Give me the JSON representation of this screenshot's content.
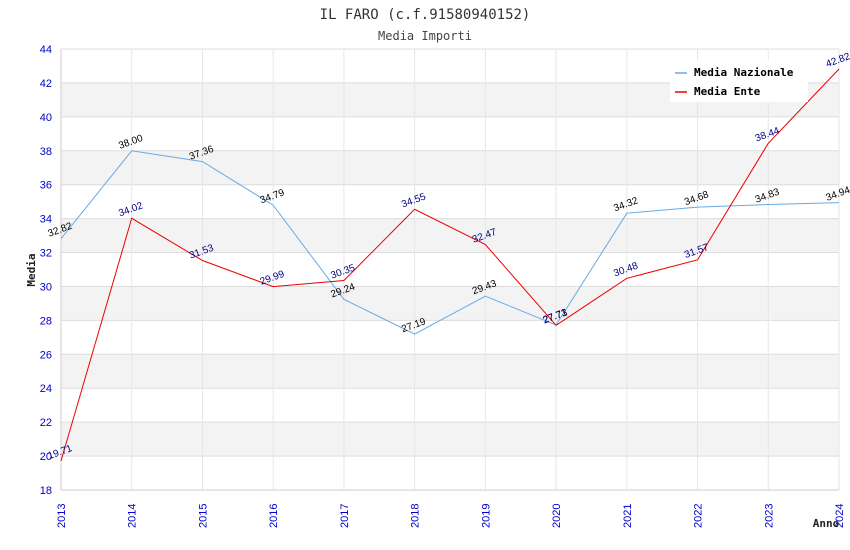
{
  "chart_data": {
    "type": "line",
    "title": "IL FARO (c.f.91580940152)",
    "subtitle": "Media Importi",
    "xlabel": "Anno",
    "ylabel": "Media",
    "x": [
      "2013",
      "2014",
      "2015",
      "2016",
      "2017",
      "2018",
      "2019",
      "2020",
      "2021",
      "2022",
      "2023",
      "2024"
    ],
    "ylim": [
      18,
      44
    ],
    "yticks": [
      18,
      20,
      22,
      24,
      26,
      28,
      30,
      32,
      34,
      36,
      38,
      40,
      42,
      44
    ],
    "grid": true,
    "legend_position": "top-right",
    "series": [
      {
        "name": "Media Nazionale",
        "color": "#6aaae4",
        "label_color": "#000000",
        "values": [
          32.82,
          38.0,
          37.36,
          34.79,
          29.24,
          27.19,
          29.43,
          27.73,
          34.32,
          34.68,
          34.83,
          34.94
        ],
        "labels": [
          "32.82",
          "38.00",
          "37.36",
          "34.79",
          "29.24",
          "27.19",
          "29.43",
          "27.73",
          "34.32",
          "34.68",
          "34.83",
          "34.94"
        ]
      },
      {
        "name": "Media Ente",
        "color": "#ee0000",
        "label_color": "#000080",
        "values": [
          19.71,
          34.02,
          31.53,
          29.99,
          30.35,
          34.55,
          32.47,
          27.71,
          30.48,
          31.57,
          38.44,
          42.82
        ],
        "labels": [
          "19.71",
          "34.02",
          "31.53",
          "29.99",
          "30.35",
          "34.55",
          "32.47",
          "27.71",
          "30.48",
          "31.57",
          "38.44",
          "42.82"
        ]
      }
    ]
  }
}
